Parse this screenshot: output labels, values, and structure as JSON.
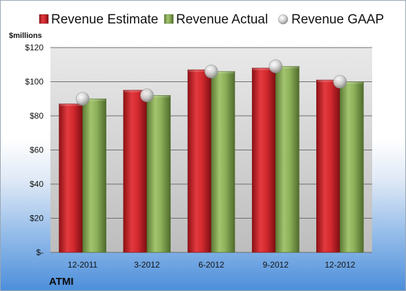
{
  "chart_data": {
    "type": "bar",
    "company": "ATMI",
    "ylabel": "$millions",
    "categories": [
      "12-2011",
      "3-2012",
      "6-2012",
      "9-2012",
      "12-2012"
    ],
    "series": [
      {
        "name": "Revenue Estimate",
        "kind": "bar",
        "color": "#d42a2f",
        "values": [
          87,
          95,
          107,
          108,
          101
        ]
      },
      {
        "name": "Revenue Actual",
        "kind": "bar",
        "color": "#8db05a",
        "values": [
          90,
          92,
          106,
          109,
          100
        ]
      },
      {
        "name": "Revenue GAAP",
        "kind": "marker",
        "color": "#c8c8c8",
        "values": [
          90,
          92,
          106,
          109,
          100
        ]
      }
    ],
    "ylim": [
      0,
      120
    ],
    "ytick_values": [
      0,
      20,
      40,
      60,
      80,
      100,
      120
    ],
    "ytick_labels": [
      "$-",
      "$20",
      "$40",
      "$60",
      "$80",
      "$100",
      "$120"
    ],
    "grid": true,
    "legend_position": "top"
  }
}
